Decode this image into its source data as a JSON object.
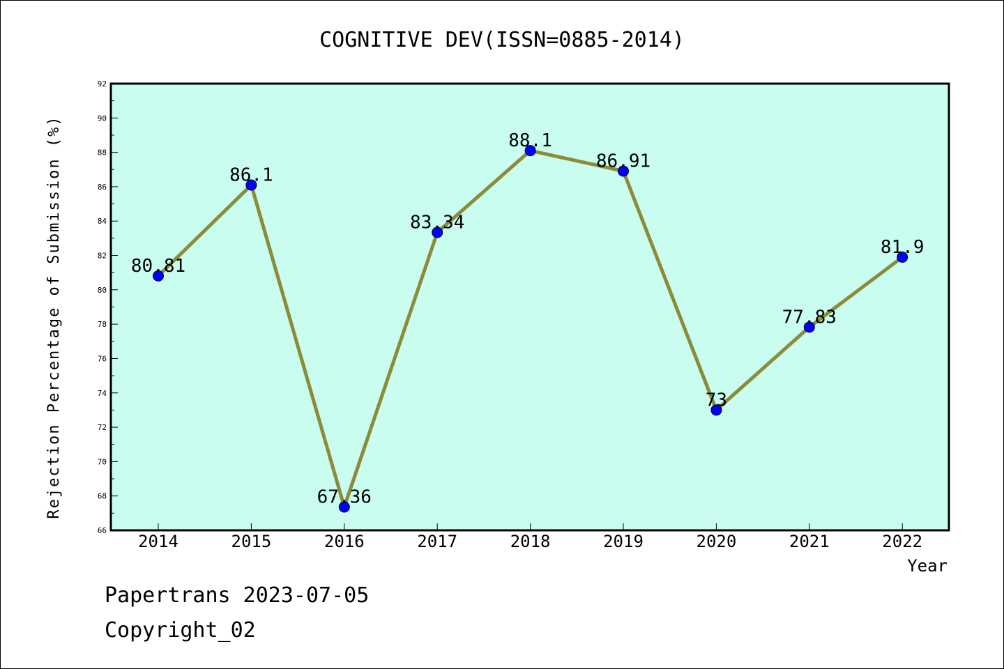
{
  "chart_data": {
    "type": "line",
    "title": "COGNITIVE DEV(ISSN=0885-2014)",
    "xlabel": "Year",
    "ylabel": "Rejection Percentage of Submission (%)",
    "x": [
      "2014",
      "2015",
      "2016",
      "2017",
      "2018",
      "2019",
      "2020",
      "2021",
      "2022"
    ],
    "values": [
      80.81,
      86.1,
      67.36,
      83.34,
      88.1,
      86.91,
      73,
      77.83,
      81.9
    ],
    "data_labels": [
      "80.81",
      "86.1",
      "67.36",
      "83.34",
      "88.1",
      "86.91",
      "73",
      "77.83",
      "81.9"
    ],
    "ylim": [
      66,
      92
    ],
    "yticks": [
      "66",
      "68",
      "70",
      "72",
      "74",
      "76",
      "78",
      "80",
      "82",
      "84",
      "86",
      "88",
      "90",
      "92"
    ],
    "grid": false,
    "colors": {
      "plot_background": "#c8fdef",
      "line": "#8b8b3a",
      "marker": "#0000ff"
    }
  },
  "footer": {
    "line1": "Papertrans 2023-07-05",
    "line2": "Copyright_02"
  }
}
